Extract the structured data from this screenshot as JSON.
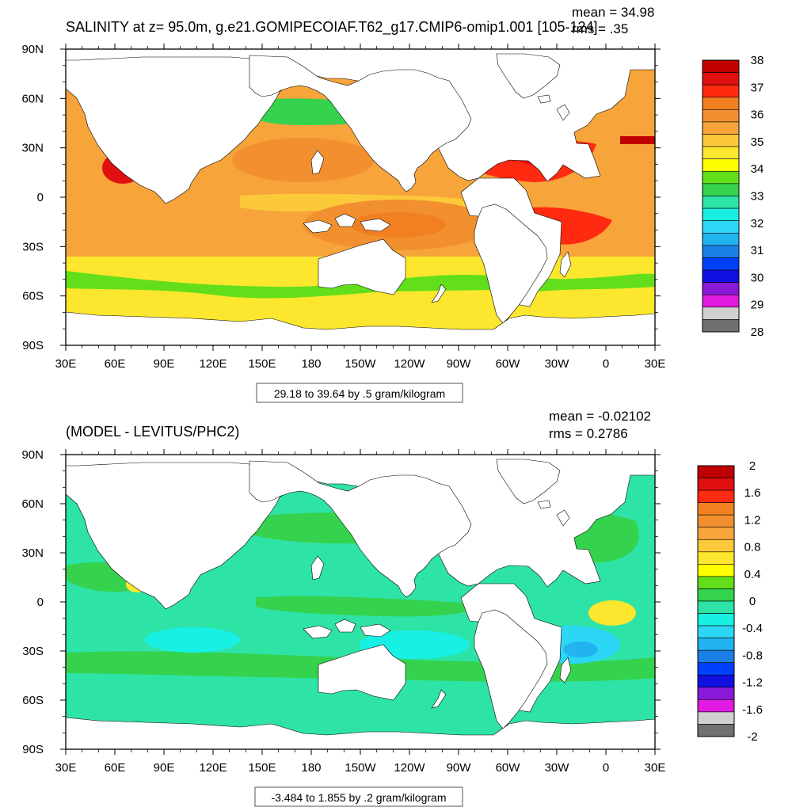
{
  "chart_data": [
    {
      "type": "heatmap",
      "title": "SALINITY at z=  95.0m, g.e21.GOMIPECOIAF.T62_g17.CMIP6-omip1.001 [105-124]",
      "stats": {
        "mean": "mean = 34.98",
        "rms": "rms = .35"
      },
      "lon_ticks": [
        "30E",
        "60E",
        "90E",
        "120E",
        "150E",
        "180",
        "150W",
        "120W",
        "90W",
        "60W",
        "30W",
        "0",
        "30E"
      ],
      "lat_ticks": [
        "90N",
        "60N",
        "30N",
        "0",
        "30S",
        "60S",
        "90S"
      ],
      "lon_range": [
        30,
        390
      ],
      "lat_range": [
        -90,
        90
      ],
      "colorbar": {
        "labels": [
          "38",
          "37",
          "36",
          "35",
          "34",
          "33",
          "32",
          "31",
          "30",
          "29",
          "28"
        ],
        "colors": [
          "#c00000",
          "#e01010",
          "#ff2a10",
          "#f28020",
          "#f29030",
          "#f7a43a",
          "#fcc93a",
          "#fde72e",
          "#ffff00",
          "#62df1a",
          "#35d24e",
          "#2ee3a6",
          "#18f0e4",
          "#2cd7f5",
          "#22b4f0",
          "#1a80e6",
          "#0040ff",
          "#1010e0",
          "#8a18d8",
          "#e01ae0",
          "#d0d0d0",
          "#707070"
        ]
      },
      "contour_info": "29.18 to 39.64 by .5 gram/kilogram",
      "xlabel": "",
      "ylabel": ""
    },
    {
      "type": "heatmap",
      "title": "(MODEL - LEVITUS/PHC2)",
      "stats": {
        "mean": "mean = -0.02102",
        "rms": "rms = 0.2786"
      },
      "lon_ticks": [
        "30E",
        "60E",
        "90E",
        "120E",
        "150E",
        "180",
        "150W",
        "120W",
        "90W",
        "60W",
        "30W",
        "0",
        "30E"
      ],
      "lat_ticks": [
        "90N",
        "60N",
        "30N",
        "0",
        "30S",
        "60S",
        "90S"
      ],
      "lon_range": [
        30,
        390
      ],
      "lat_range": [
        -90,
        90
      ],
      "colorbar": {
        "labels": [
          "2",
          "1.6",
          "1.2",
          "0.8",
          "0.4",
          "0",
          "-0.4",
          "-0.8",
          "-1.2",
          "-1.6",
          "-2"
        ],
        "colors": [
          "#c00000",
          "#e01010",
          "#ff2a10",
          "#f28020",
          "#f29030",
          "#f7a43a",
          "#fcc93a",
          "#fde72e",
          "#ffff00",
          "#62df1a",
          "#35d24e",
          "#2ee3a6",
          "#18f0e4",
          "#2cd7f5",
          "#22b4f0",
          "#1a80e6",
          "#0040ff",
          "#1010e0",
          "#8a18d8",
          "#e01ae0",
          "#d0d0d0",
          "#707070"
        ]
      },
      "contour_info": "-3.484 to 1.855 by .2 gram/kilogram",
      "xlabel": "",
      "ylabel": ""
    }
  ],
  "colors": {
    "land": "#ffffff",
    "frame": "#000000",
    "salinity_background": "#f7a43a",
    "salinity_subtropics": "#f29030",
    "salinity_core": "#f28020",
    "salinity_atlantic_max": "#ff2a10",
    "salinity_atlantic_core": "#e01010",
    "salinity_tropics": "#fcc93a",
    "salinity_southern": "#fde72e",
    "salinity_southern_low": "#62df1a",
    "salinity_arctic": "#2ee3a6",
    "diff_background": "#2ee3a6",
    "diff_positive": "#35d24e",
    "diff_positive_high": "#fde72e",
    "diff_negative": "#18f0e4",
    "diff_negative_strong": "#2cd7f5",
    "diff_arctic": "#1a80e6",
    "diff_arctic_core": "#8a18d8",
    "diff_arctic_min": "#e01ae0"
  }
}
